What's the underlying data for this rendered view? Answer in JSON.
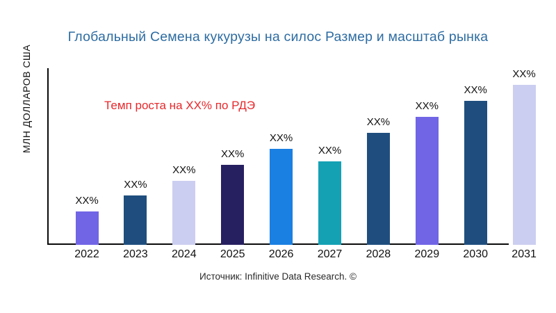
{
  "chart_data": {
    "type": "bar",
    "title": "Глобальный Семена кукурузы на силос Размер и масштаб рынка",
    "title_color": "#2d6ca2",
    "ylabel": "МЛН ДОЛЛАРОВ США",
    "xlabel": "",
    "annotation": "Темп роста на XX% по РДЭ",
    "annotation_color": "#e8282c",
    "source": "Источник: Infinitive Data Research. ©",
    "categories": [
      "2022",
      "2023",
      "2024",
      "2025",
      "2026",
      "2027",
      "2028",
      "2029",
      "2030",
      "2031"
    ],
    "bar_value_labels": [
      "XX%",
      "XX%",
      "XX%",
      "XX%",
      "XX%",
      "XX%",
      "XX%",
      "XX%",
      "XX%",
      "XX%"
    ],
    "values_relative_pct": [
      21,
      31,
      40,
      50,
      60,
      52,
      70,
      80,
      90,
      100
    ],
    "bar_colors": [
      "#7165e6",
      "#1f4e7e",
      "#cbcef0",
      "#261f60",
      "#1a80e2",
      "#14a1b4",
      "#1f4e7e",
      "#7165e6",
      "#1f4e7e",
      "#cbcef0"
    ],
    "axis_color": "#0a0a0a",
    "grid": "off",
    "legend": "none",
    "ylim": [
      0,
      100
    ]
  }
}
